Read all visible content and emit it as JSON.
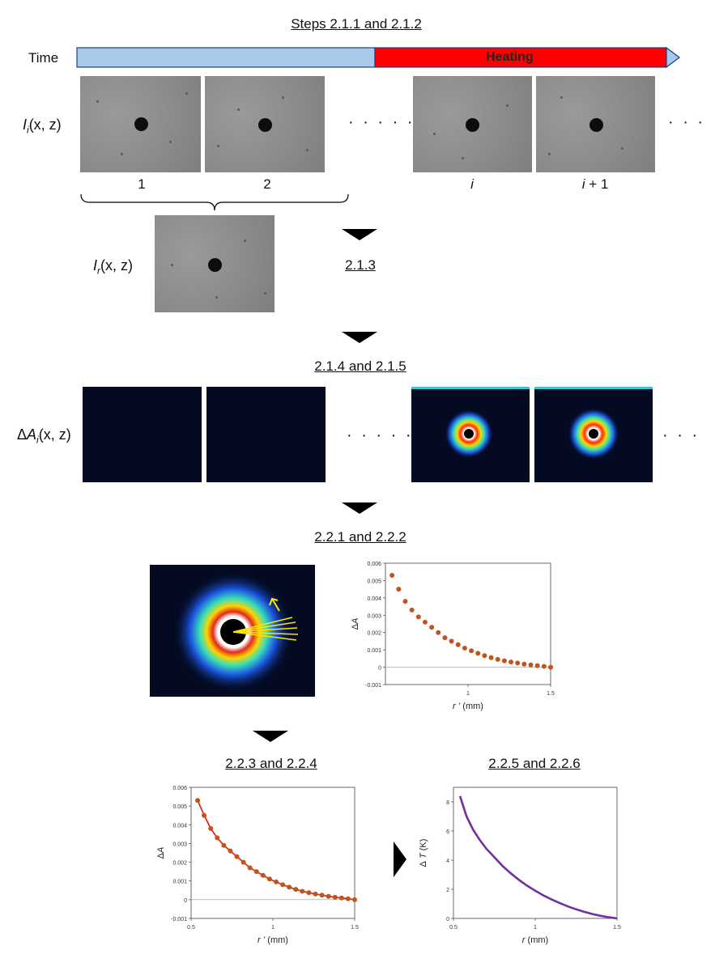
{
  "headings": {
    "steps_211_212": "Steps 2.1.1 and 2.1.2",
    "step_213": "2.1.3",
    "steps_214_215": "2.1.4 and 2.1.5",
    "steps_221_222": "2.2.1 and 2.2.2",
    "steps_223_224": "2.2.3 and 2.2.4",
    "steps_225_226": "2.2.5 and 2.2.6"
  },
  "timeline": {
    "label": "Time",
    "heating_label": "Heating",
    "colors": {
      "before": "#a9c9e8",
      "heating": "#ff0000"
    }
  },
  "row_labels": {
    "Ii_I": "I",
    "Ii_sub": "i",
    "Ii_args": "(x, z)",
    "Ir_I": "I",
    "Ir_sub": "r",
    "Ir_args": "(x, z)",
    "dA_delta": "Δ",
    "dA_A": "A",
    "dA_sub": "i",
    "dA_args": "(x, z)"
  },
  "frame_numbers": {
    "n1": "1",
    "n2": "2",
    "ni": "i",
    "ni1_i": "i",
    "ni1_rest": " + 1"
  },
  "ellipsis": {
    "short": "· · · · ·",
    "end": "· · ·"
  },
  "chart_data": [
    {
      "type": "scatter",
      "ylabel_delta": "Δ",
      "ylabel_var": "A",
      "xlabel_var": "r ’",
      "xlabel_unit": " (mm)",
      "xlim": [
        0.5,
        1.5
      ],
      "ylim": [
        -0.001,
        0.006
      ],
      "xticks": [
        "1",
        "1.5"
      ],
      "yticks": [
        "-0.001",
        "0",
        "0.001",
        "0.002",
        "0.003",
        "0.004",
        "0.005",
        "0.006"
      ],
      "color": "#c0541e",
      "x": [
        0.54,
        0.58,
        0.62,
        0.66,
        0.7,
        0.74,
        0.78,
        0.82,
        0.86,
        0.9,
        0.94,
        0.98,
        1.02,
        1.06,
        1.1,
        1.14,
        1.18,
        1.22,
        1.26,
        1.3,
        1.34,
        1.38,
        1.42,
        1.46,
        1.5
      ],
      "y": [
        0.0053,
        0.0045,
        0.0038,
        0.0033,
        0.0029,
        0.0026,
        0.0023,
        0.002,
        0.0017,
        0.0015,
        0.0013,
        0.0011,
        0.00095,
        0.0008,
        0.00067,
        0.00055,
        0.00045,
        0.00037,
        0.0003,
        0.00024,
        0.00018,
        0.00013,
        9e-05,
        5e-05,
        0.0
      ]
    },
    {
      "type": "scatter",
      "ylabel_delta": "Δ",
      "ylabel_var": "A",
      "xlabel_var": "r ’",
      "xlabel_unit": " (mm)",
      "xlim": [
        0.5,
        1.5
      ],
      "ylim": [
        -0.001,
        0.006
      ],
      "xticks": [
        "0.5",
        "1",
        "1.5"
      ],
      "yticks": [
        "-0.001",
        "0",
        "0.001",
        "0.002",
        "0.003",
        "0.004",
        "0.005",
        "0.006"
      ],
      "color": "#c0541e",
      "fit_color": "#d9301c",
      "x": [
        0.54,
        0.58,
        0.62,
        0.66,
        0.7,
        0.74,
        0.78,
        0.82,
        0.86,
        0.9,
        0.94,
        0.98,
        1.02,
        1.06,
        1.1,
        1.14,
        1.18,
        1.22,
        1.26,
        1.3,
        1.34,
        1.38,
        1.42,
        1.46,
        1.5
      ],
      "y": [
        0.0053,
        0.0045,
        0.0038,
        0.0033,
        0.0029,
        0.0026,
        0.0023,
        0.002,
        0.0017,
        0.0015,
        0.0013,
        0.0011,
        0.00095,
        0.0008,
        0.00067,
        0.00055,
        0.00045,
        0.00037,
        0.0003,
        0.00024,
        0.00018,
        0.00013,
        9e-05,
        5e-05,
        0.0
      ]
    },
    {
      "type": "line",
      "ylabel_delta": "Δ",
      "ylabel_var": "T",
      "ylabel_unit": " (K)",
      "xlabel_var": "r",
      "xlabel_unit": " (mm)",
      "xlim": [
        0.5,
        1.5
      ],
      "ylim": [
        0,
        9
      ],
      "xticks": [
        "0.5",
        "1",
        "1.5"
      ],
      "yticks": [
        "0",
        "2",
        "4",
        "6",
        "8"
      ],
      "color": "#7030a0",
      "x": [
        0.54,
        0.58,
        0.62,
        0.66,
        0.7,
        0.75,
        0.8,
        0.85,
        0.9,
        0.95,
        1.0,
        1.05,
        1.1,
        1.15,
        1.2,
        1.25,
        1.3,
        1.35,
        1.4,
        1.45,
        1.5
      ],
      "y": [
        8.4,
        7.0,
        6.1,
        5.4,
        4.8,
        4.2,
        3.6,
        3.1,
        2.65,
        2.25,
        1.9,
        1.58,
        1.3,
        1.05,
        0.82,
        0.62,
        0.45,
        0.3,
        0.18,
        0.08,
        0.0
      ]
    }
  ]
}
